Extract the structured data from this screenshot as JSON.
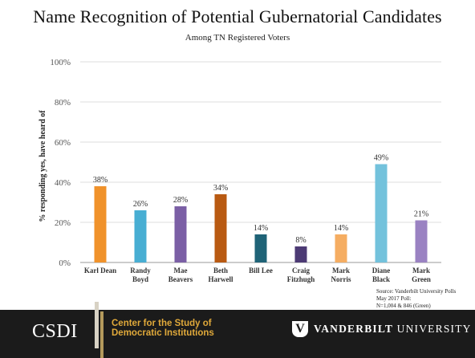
{
  "chart_data": {
    "type": "bar",
    "title": "Name Recognition of Potential Gubernatorial Candidates",
    "subtitle": "Among TN Registered Voters",
    "ylabel": "% responding yes, have heard of",
    "ylim": [
      0,
      100
    ],
    "yticks": [
      "0%",
      "20%",
      "40%",
      "60%",
      "80%",
      "100%"
    ],
    "grid": true,
    "categories": [
      [
        "Karl Dean"
      ],
      [
        "Randy",
        "Boyd"
      ],
      [
        "Mae",
        "Beavers"
      ],
      [
        "Beth",
        "Harwell"
      ],
      [
        "Bill Lee"
      ],
      [
        "Craig",
        "Fitzhugh"
      ],
      [
        "Mark",
        "Norris"
      ],
      [
        "Diane",
        "Black"
      ],
      [
        "Mark",
        "Green"
      ]
    ],
    "values": [
      38,
      26,
      28,
      34,
      14,
      8,
      14,
      49,
      21
    ],
    "value_labels": [
      "38%",
      "26%",
      "28%",
      "34%",
      "14%",
      "8%",
      "14%",
      "49%",
      "21%"
    ],
    "colors": [
      "#f0922b",
      "#48aed3",
      "#7b5fa5",
      "#b95a12",
      "#1f6377",
      "#4c3a74",
      "#f5ad62",
      "#73c2dc",
      "#9a82c2"
    ]
  },
  "source": {
    "line1": "Source: Vanderbilt University Polls",
    "line2": "May 2017 Poll:",
    "line3": "N=1,004 & 846 (Green)"
  },
  "footer": {
    "csdi_logo": "CSDI",
    "csdi_line1": "Center for the Study of",
    "csdi_line2": "Democratic Institutions",
    "vu_shield": "V",
    "vu_bold": "VANDERBILT",
    "vu_rest": "UNIVERSITY"
  }
}
